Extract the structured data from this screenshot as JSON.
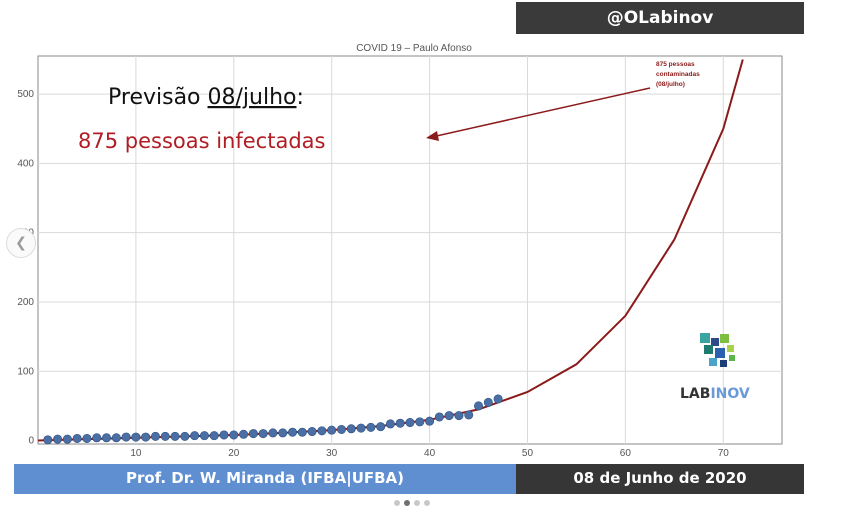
{
  "header": {
    "handle": "@OLabinov"
  },
  "footer": {
    "author": "Prof. Dr. W. Miranda (IFBA|UFBA)",
    "date": "08 de Junho de 2020"
  },
  "logo": {
    "text_lab": "LAB",
    "text_inov": "INOV"
  },
  "colors": {
    "curve": "#8b1a1a",
    "points": "#4a6fa5",
    "footer_left": "#5f8fd0",
    "footer_right": "#363636",
    "prediction_text": "#b01e24"
  },
  "chart_data": {
    "type": "scatter",
    "title": "COVID 19 – Paulo Afonso",
    "xlim": [
      0,
      76
    ],
    "ylim": [
      -5,
      555
    ],
    "x_ticks": [
      10,
      20,
      30,
      40,
      50,
      60,
      70
    ],
    "y_ticks": [
      100,
      200,
      300,
      400,
      500
    ],
    "grid": true,
    "annotation": {
      "heading_prefix": "Previsão ",
      "heading_date": "08/julho",
      "heading_suffix": ":",
      "prediction": "875 pessoas infectadas",
      "note": [
        "875 pessoas",
        "contaminadas",
        "(08/julho)"
      ]
    },
    "series": [
      {
        "kind": "observed",
        "x": [
          1,
          2,
          3,
          4,
          5,
          6,
          7,
          8,
          9,
          10,
          11,
          12,
          13,
          14,
          15,
          16,
          17,
          18,
          19,
          20,
          21,
          22,
          23,
          24,
          25,
          26,
          27,
          28,
          29,
          30,
          31,
          32,
          33,
          34,
          35,
          36,
          37,
          38,
          39,
          40,
          41,
          42,
          43,
          44,
          45,
          46,
          47
        ],
        "y": [
          1,
          2,
          2,
          3,
          3,
          4,
          4,
          4,
          5,
          5,
          5,
          6,
          6,
          6,
          6,
          7,
          7,
          7,
          8,
          8,
          9,
          10,
          10,
          11,
          11,
          12,
          12,
          13,
          14,
          15,
          16,
          17,
          18,
          19,
          20,
          24,
          25,
          26,
          27,
          28,
          34,
          36,
          36,
          37,
          50,
          55,
          60
        ]
      },
      {
        "kind": "fit",
        "x": [
          0,
          5,
          10,
          15,
          20,
          25,
          30,
          35,
          40,
          45,
          50,
          55,
          60,
          65,
          70,
          72
        ],
        "y": [
          0,
          2,
          4,
          6,
          8,
          11,
          15,
          21,
          30,
          45,
          70,
          110,
          180,
          290,
          450,
          550
        ]
      }
    ]
  }
}
